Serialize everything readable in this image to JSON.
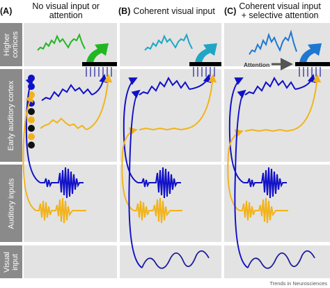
{
  "panels": [
    {
      "tag": "(A)",
      "title": "No visual input or attention"
    },
    {
      "tag": "(B)",
      "title": "Coherent visual input"
    },
    {
      "tag": "(C)",
      "title": "Coherent visual input\n+ selective attention"
    }
  ],
  "row_labels": {
    "higher": "Higher\ncortices",
    "early": "Early auditory cortex",
    "auditory": "Auditory inputs",
    "visual": "Visual\ninput"
  },
  "attention_label": "Attention",
  "credit": "Trends in Neurosciences",
  "colors": {
    "background": "#e3e3e3",
    "row_label": "#8a8a8a",
    "blue": "#1010c8",
    "yellow": "#f2b31a",
    "green": "#22b722",
    "cyan": "#20a6c4",
    "mid_blue": "#1f78d0",
    "dark_blue": "#1e1e9a"
  }
}
